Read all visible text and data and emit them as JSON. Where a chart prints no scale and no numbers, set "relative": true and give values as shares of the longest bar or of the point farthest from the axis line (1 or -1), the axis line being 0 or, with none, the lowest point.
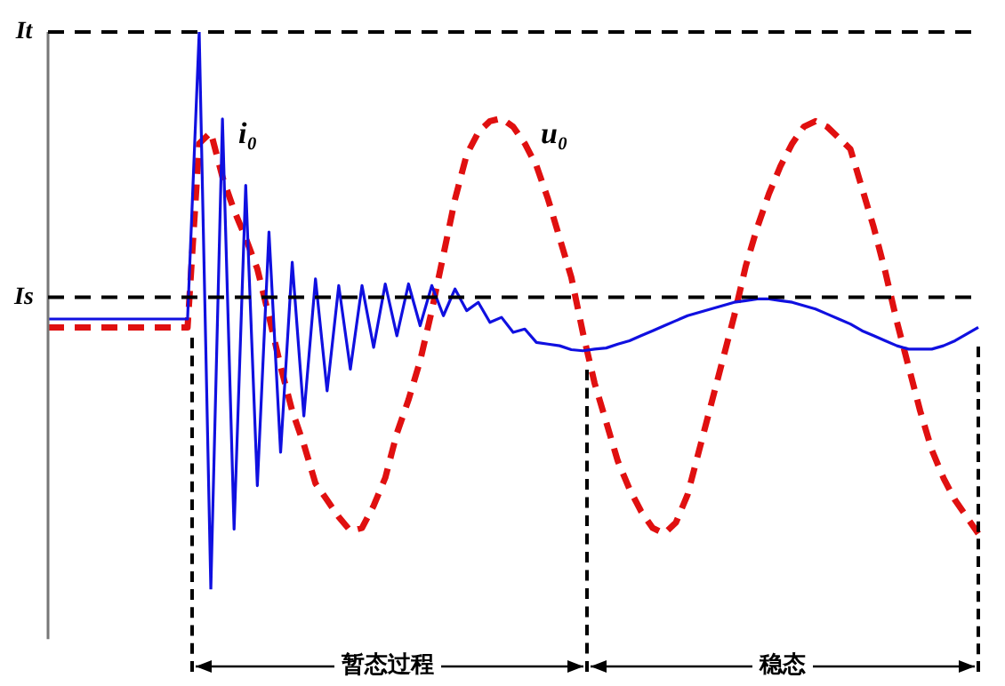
{
  "chart_data": {
    "type": "line",
    "relative": true,
    "legend": false,
    "marker": "none",
    "categories": [
      null,
      null,
      null,
      null,
      null,
      null,
      null,
      null,
      null,
      null,
      null,
      null,
      null,
      null,
      null,
      null,
      null,
      null,
      null,
      null,
      null,
      null,
      null,
      null,
      null,
      null,
      null,
      null,
      null,
      null,
      null,
      null,
      null,
      null,
      null,
      null,
      null,
      null,
      null,
      null,
      null,
      null,
      null,
      null,
      null,
      null,
      null,
      null,
      null,
      null,
      null,
      null,
      null,
      null,
      null,
      null,
      null,
      null,
      null,
      null,
      null,
      null,
      null,
      null,
      null,
      null,
      null,
      null,
      null,
      null,
      null,
      null,
      null,
      null,
      null,
      null,
      null,
      null,
      null,
      null,
      null
    ],
    "series": [
      {
        "name": "i₀",
        "color": "#1010e0",
        "line_style": "solid",
        "values": [
          0.485,
          0.485,
          0.485,
          0.485,
          0.485,
          0.485,
          0.485,
          0.485,
          0.485,
          0.485,
          0.485,
          0.485,
          0.485,
          1,
          0,
          0.844,
          0.108,
          0.725,
          0.186,
          0.641,
          0.246,
          0.587,
          0.311,
          0.557,
          0.356,
          0.545,
          0.395,
          0.545,
          0.434,
          0.548,
          0.455,
          0.548,
          0.473,
          0.545,
          0.491,
          0.539,
          0.5,
          0.515,
          0.479,
          0.488,
          0.461,
          0.467,
          0.443,
          0.44,
          0.437,
          0.43,
          0.428,
          0.431,
          0.433,
          0.44,
          0.446,
          0.455,
          0.464,
          0.473,
          0.482,
          0.491,
          0.497,
          0.503,
          0.509,
          0.515,
          0.518,
          0.521,
          0.521,
          0.518,
          0.515,
          0.509,
          0.503,
          0.494,
          0.485,
          0.476,
          0.464,
          0.455,
          0.446,
          0.437,
          0.431,
          0.431,
          0.431,
          0.437,
          0.446,
          0.458,
          0.47
        ]
      },
      {
        "name": "u₀",
        "color": "#e01010",
        "line_style": "dashed",
        "values": [
          0.47,
          0.47,
          0.47,
          0.47,
          0.47,
          0.47,
          0.47,
          0.47,
          0.47,
          0.47,
          0.47,
          0.47,
          0.47,
          0.8,
          0.82,
          0.74,
          0.68,
          0.63,
          0.575,
          0.49,
          0.4,
          0.32,
          0.26,
          0.19,
          0.16,
          0.13,
          0.105,
          0.11,
          0.15,
          0.2,
          0.28,
          0.34,
          0.41,
          0.5,
          0.6,
          0.7,
          0.78,
          0.82,
          0.84,
          0.845,
          0.83,
          0.8,
          0.76,
          0.7,
          0.63,
          0.56,
          0.46,
          0.37,
          0.3,
          0.23,
          0.18,
          0.14,
          0.11,
          0.1,
          0.12,
          0.17,
          0.25,
          0.33,
          0.41,
          0.49,
          0.58,
          0.65,
          0.71,
          0.76,
          0.8,
          0.83,
          0.84,
          0.83,
          0.81,
          0.79,
          0.72,
          0.65,
          0.57,
          0.48,
          0.4,
          0.32,
          0.25,
          0.2,
          0.16,
          0.13,
          0.1
        ]
      }
    ],
    "ref_lines": [
      {
        "axis": "y",
        "value": 1,
        "label": "It",
        "color": "#000000",
        "line_style": "dashed"
      },
      {
        "axis": "y",
        "value": 0.524,
        "label": "Is",
        "color": "#000000",
        "line_style": "dashed"
      }
    ],
    "annotations": [
      "暂态过程",
      "稳态"
    ]
  }
}
